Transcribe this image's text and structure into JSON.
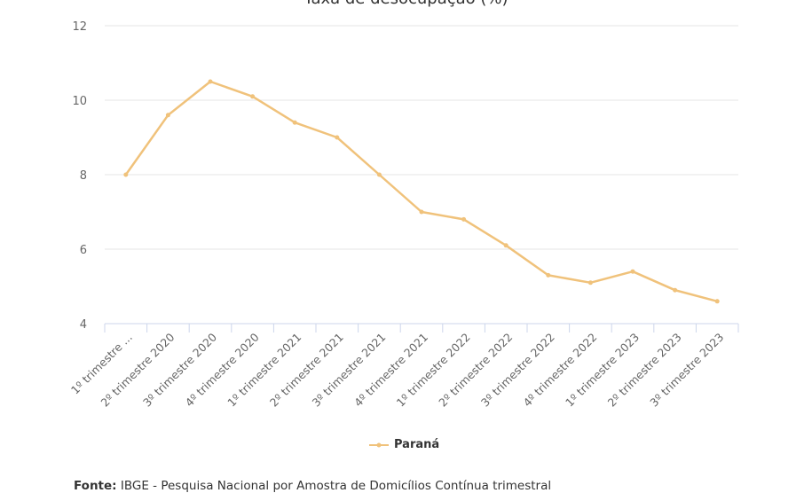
{
  "chart_data": {
    "type": "line",
    "title": "Taxa de desocupação (%)",
    "categories": [
      "1º trimestre ...",
      "2º trimestre 2020",
      "3º trimestre 2020",
      "4º trimestre 2020",
      "1º trimestre 2021",
      "2º trimestre 2021",
      "3º trimestre 2021",
      "4º trimestre 2021",
      "1º trimestre 2022",
      "2º trimestre 2022",
      "3º trimestre 2022",
      "4º trimestre 2022",
      "1º trimestre 2023",
      "2º trimestre 2023",
      "3º trimestre 2023"
    ],
    "series": [
      {
        "name": "Paraná",
        "color": "#f0c27b",
        "values": [
          8.0,
          9.6,
          10.5,
          10.1,
          9.4,
          9.0,
          8.0,
          7.0,
          6.8,
          6.1,
          5.3,
          5.1,
          5.4,
          4.9,
          4.6
        ]
      }
    ],
    "ylim": [
      4,
      12
    ],
    "yticks": [
      4,
      6,
      8,
      10,
      12
    ],
    "grid": true,
    "legend": "bottom"
  },
  "source": {
    "label": "Fonte:",
    "text": " IBGE - Pesquisa Nacional por Amostra de Domicílios Contínua trimestral"
  }
}
